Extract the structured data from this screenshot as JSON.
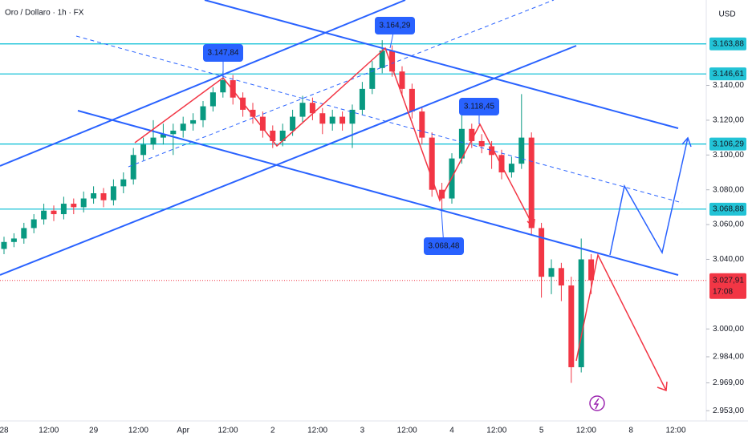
{
  "chart_data": {
    "type": "candlestick",
    "title": "Oro / Dollaro · 1h · FX",
    "currency": "USD",
    "up_color": "#089981",
    "down_color": "#f23645",
    "ylim": [
      2949,
      3189.1
    ],
    "yticks": [
      {
        "value": 3140,
        "label": "3.140,00"
      },
      {
        "value": 3120,
        "label": "3.120,00"
      },
      {
        "value": 3100,
        "label": "3.100,00"
      },
      {
        "value": 3080,
        "label": "3.080,00"
      },
      {
        "value": 3060,
        "label": "3.060,00"
      },
      {
        "value": 3040,
        "label": "3.040,00"
      },
      {
        "value": 3000,
        "label": "3.000,00"
      },
      {
        "value": 2984,
        "label": "2.984,00"
      },
      {
        "value": 2969,
        "label": "2.969,00"
      },
      {
        "value": 2953,
        "label": "2.953,00"
      }
    ],
    "xlabels": [
      "28",
      "12:00",
      "29",
      "12:00",
      "Apr",
      "12:00",
      "2",
      "12:00",
      "3",
      "12:00",
      "4",
      "12:00",
      "5",
      "12:00",
      "8",
      "12:00"
    ],
    "open": [
      3046,
      3050,
      3052,
      3058,
      3063,
      3068,
      3066,
      3072,
      3070,
      3075,
      3078,
      3074,
      3082,
      3086,
      3100,
      3106,
      3110,
      3112,
      3114,
      3118,
      3120,
      3128,
      3136,
      3143,
      3133,
      3126,
      3122,
      3114,
      3108,
      3114,
      3122,
      3130,
      3124,
      3118,
      3122,
      3118,
      3126,
      3138,
      3150,
      3160,
      3148,
      3138,
      3125,
      3110,
      3080,
      3075,
      3098,
      3115,
      3108,
      3105,
      3100,
      3090,
      3095,
      3110,
      3058,
      3030,
      3035,
      3025,
      2978,
      3040
    ],
    "high": [
      3053,
      3055,
      3061,
      3066,
      3072,
      3071,
      3076,
      3075,
      3079,
      3082,
      3081,
      3086,
      3090,
      3104,
      3110,
      3120,
      3118,
      3118,
      3122,
      3124,
      3131,
      3139,
      3148,
      3146,
      3136,
      3130,
      3125,
      3117,
      3118,
      3126,
      3134,
      3133,
      3127,
      3126,
      3125,
      3129,
      3142,
      3154,
      3166,
      3163,
      3151,
      3141,
      3128,
      3113,
      3084,
      3101,
      3124,
      3118,
      3112,
      3108,
      3103,
      3099,
      3135,
      3113,
      3061,
      3040,
      3038,
      3030,
      3052,
      3043
    ],
    "low": [
      3043,
      3047,
      3049,
      3055,
      3060,
      3062,
      3063,
      3066,
      3067,
      3072,
      3070,
      3071,
      3078,
      3083,
      3097,
      3103,
      3106,
      3100,
      3110,
      3114,
      3116,
      3125,
      3133,
      3129,
      3122,
      3118,
      3110,
      3104,
      3105,
      3111,
      3119,
      3120,
      3112,
      3114,
      3114,
      3104,
      3123,
      3135,
      3147,
      3145,
      3134,
      3121,
      3106,
      3076,
      3068,
      3072,
      3095,
      3104,
      3101,
      3092,
      3086,
      3087,
      3092,
      3054,
      3018,
      3020,
      3016,
      2969,
      2975,
      3020
    ],
    "close": [
      3050,
      3052,
      3058,
      3063,
      3068,
      3066,
      3072,
      3070,
      3075,
      3078,
      3074,
      3082,
      3086,
      3100,
      3106,
      3110,
      3112,
      3114,
      3118,
      3120,
      3128,
      3136,
      3143,
      3133,
      3126,
      3122,
      3114,
      3108,
      3114,
      3122,
      3130,
      3124,
      3118,
      3122,
      3118,
      3126,
      3138,
      3150,
      3160,
      3148,
      3138,
      3125,
      3110,
      3080,
      3075,
      3098,
      3115,
      3108,
      3105,
      3100,
      3090,
      3095,
      3110,
      3058,
      3030,
      3035,
      3025,
      2978,
      3040,
      3028
    ],
    "levels": [
      {
        "value": 3163.88,
        "label": "3.163,88"
      },
      {
        "value": 3146.61,
        "label": "3.146,61"
      },
      {
        "value": 3106.29,
        "label": "3.106,29"
      },
      {
        "value": 3068.88,
        "label": "3.068,88"
      }
    ],
    "last_price": {
      "value": 3027.91,
      "label": "3.027,91",
      "countdown": "17:08"
    },
    "annotations": [
      "3.147,84",
      "3.164,29",
      "3.118,45",
      "3.068,48"
    ]
  }
}
